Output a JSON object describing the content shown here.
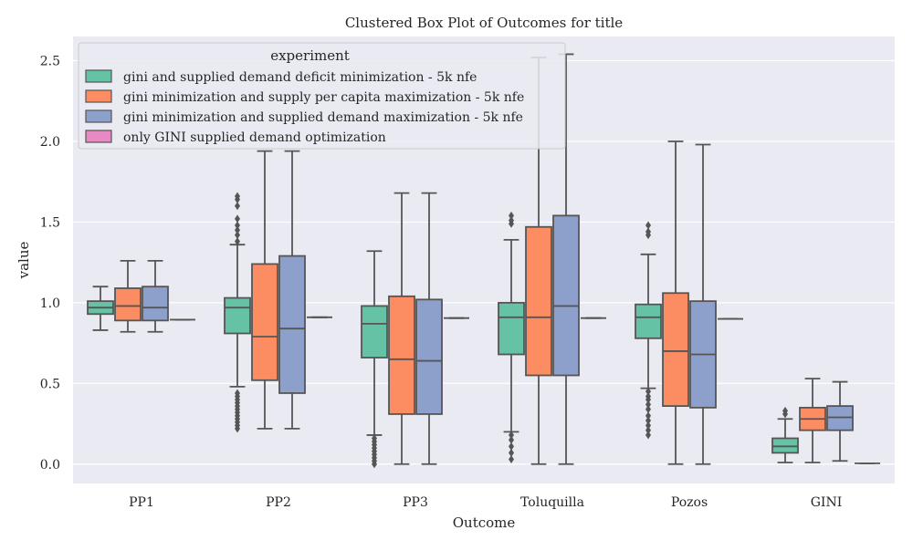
{
  "chart_data": {
    "type": "box",
    "title": "Clustered Box Plot of Outcomes for title",
    "xlabel": "Outcome",
    "ylabel": "value",
    "ylim": [
      -0.12,
      2.65
    ],
    "yticks": [
      0.0,
      0.5,
      1.0,
      1.5,
      2.0,
      2.5
    ],
    "ytick_labels": [
      "0.0",
      "0.5",
      "1.0",
      "1.5",
      "2.0",
      "2.5"
    ],
    "categories": [
      "PP1",
      "PP2",
      "PP3",
      "Toluquilla",
      "Pozos",
      "GINI"
    ],
    "grid": true,
    "legend": {
      "title": "experiment",
      "placement": "top-left"
    },
    "colors": {
      "background": "#eaeaf2",
      "grid": "#ffffff",
      "line": "#555555"
    },
    "series": [
      {
        "name": "gini and supplied demand deficit minimization - 5k nfe",
        "color": "#66c2a5",
        "boxes": [
          {
            "whislo": 0.83,
            "q1": 0.93,
            "med": 0.97,
            "q3": 1.01,
            "whishi": 1.1,
            "fliers": []
          },
          {
            "whislo": 0.48,
            "q1": 0.81,
            "med": 0.97,
            "q3": 1.03,
            "whishi": 1.36,
            "fliers": [
              0.22,
              0.24,
              0.26,
              0.28,
              0.3,
              0.32,
              0.34,
              0.36,
              0.38,
              0.4,
              0.42,
              0.44,
              1.38,
              1.42,
              1.45,
              1.48,
              1.52,
              1.6,
              1.64,
              1.66
            ]
          },
          {
            "whislo": 0.18,
            "q1": 0.66,
            "med": 0.87,
            "q3": 0.98,
            "whishi": 1.32,
            "fliers": [
              0.0,
              0.02,
              0.04,
              0.06,
              0.08,
              0.1,
              0.12,
              0.14,
              0.16
            ]
          },
          {
            "whislo": 0.2,
            "q1": 0.68,
            "med": 0.91,
            "q3": 1.0,
            "whishi": 1.39,
            "fliers": [
              0.03,
              0.07,
              0.11,
              0.15,
              0.18,
              1.49,
              1.51,
              1.54
            ]
          },
          {
            "whislo": 0.47,
            "q1": 0.78,
            "med": 0.91,
            "q3": 0.99,
            "whishi": 1.3,
            "fliers": [
              0.18,
              0.21,
              0.24,
              0.27,
              0.3,
              0.34,
              0.37,
              0.4,
              0.42,
              0.45,
              1.42,
              1.44,
              1.48
            ]
          },
          {
            "whislo": 0.01,
            "q1": 0.07,
            "med": 0.11,
            "q3": 0.16,
            "whishi": 0.28,
            "fliers": [
              0.31,
              0.33
            ]
          }
        ]
      },
      {
        "name": "gini minimization and supply per capita maximization - 5k nfe",
        "color": "#fc8d62",
        "boxes": [
          {
            "whislo": 0.82,
            "q1": 0.89,
            "med": 0.98,
            "q3": 1.09,
            "whishi": 1.26,
            "fliers": []
          },
          {
            "whislo": 0.22,
            "q1": 0.52,
            "med": 0.79,
            "q3": 1.24,
            "whishi": 1.94,
            "fliers": []
          },
          {
            "whislo": 0.0,
            "q1": 0.31,
            "med": 0.65,
            "q3": 1.04,
            "whishi": 1.68,
            "fliers": []
          },
          {
            "whislo": 0.0,
            "q1": 0.55,
            "med": 0.91,
            "q3": 1.47,
            "whishi": 2.52,
            "fliers": []
          },
          {
            "whislo": 0.0,
            "q1": 0.36,
            "med": 0.7,
            "q3": 1.06,
            "whishi": 2.0,
            "fliers": []
          },
          {
            "whislo": 0.01,
            "q1": 0.21,
            "med": 0.28,
            "q3": 0.35,
            "whishi": 0.53,
            "fliers": []
          }
        ]
      },
      {
        "name": "gini minimization and supplied demand maximization - 5k nfe",
        "color": "#8da0cb",
        "boxes": [
          {
            "whislo": 0.82,
            "q1": 0.89,
            "med": 0.97,
            "q3": 1.1,
            "whishi": 1.26,
            "fliers": []
          },
          {
            "whislo": 0.22,
            "q1": 0.44,
            "med": 0.84,
            "q3": 1.29,
            "whishi": 1.94,
            "fliers": []
          },
          {
            "whislo": 0.0,
            "q1": 0.31,
            "med": 0.64,
            "q3": 1.02,
            "whishi": 1.68,
            "fliers": []
          },
          {
            "whislo": 0.0,
            "q1": 0.55,
            "med": 0.98,
            "q3": 1.54,
            "whishi": 2.54,
            "fliers": []
          },
          {
            "whislo": 0.0,
            "q1": 0.35,
            "med": 0.68,
            "q3": 1.01,
            "whishi": 1.98,
            "fliers": []
          },
          {
            "whislo": 0.02,
            "q1": 0.21,
            "med": 0.29,
            "q3": 0.36,
            "whishi": 0.51,
            "fliers": []
          }
        ]
      },
      {
        "name": "only GINI supplied demand optimization",
        "color": "#e78ac3",
        "boxes": [
          {
            "whislo": 0.895,
            "q1": 0.895,
            "med": 0.895,
            "q3": 0.895,
            "whishi": 0.895,
            "fliers": []
          },
          {
            "whislo": 0.91,
            "q1": 0.91,
            "med": 0.91,
            "q3": 0.91,
            "whishi": 0.91,
            "fliers": []
          },
          {
            "whislo": 0.905,
            "q1": 0.905,
            "med": 0.905,
            "q3": 0.905,
            "whishi": 0.905,
            "fliers": []
          },
          {
            "whislo": 0.905,
            "q1": 0.905,
            "med": 0.905,
            "q3": 0.905,
            "whishi": 0.905,
            "fliers": []
          },
          {
            "whislo": 0.9,
            "q1": 0.9,
            "med": 0.9,
            "q3": 0.9,
            "whishi": 0.9,
            "fliers": []
          },
          {
            "whislo": 0.005,
            "q1": 0.005,
            "med": 0.005,
            "q3": 0.005,
            "whishi": 0.005,
            "fliers": []
          }
        ]
      }
    ]
  }
}
